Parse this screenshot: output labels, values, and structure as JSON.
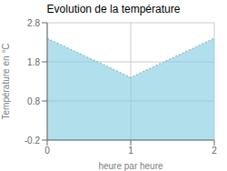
{
  "chart_data": {
    "type": "area",
    "title": "Evolution de la température",
    "xlabel": "heure par heure",
    "ylabel": "Température en °C",
    "x": [
      0,
      1,
      2
    ],
    "values": [
      2.4,
      1.4,
      2.4
    ],
    "xlim": [
      0,
      2
    ],
    "ylim": [
      -0.2,
      2.8
    ],
    "xticks": [
      0,
      1,
      2
    ],
    "yticks": [
      -0.2,
      0.8,
      1.8,
      2.8
    ],
    "color": "#7ecae0",
    "line_style": "dotted",
    "grid": true
  }
}
